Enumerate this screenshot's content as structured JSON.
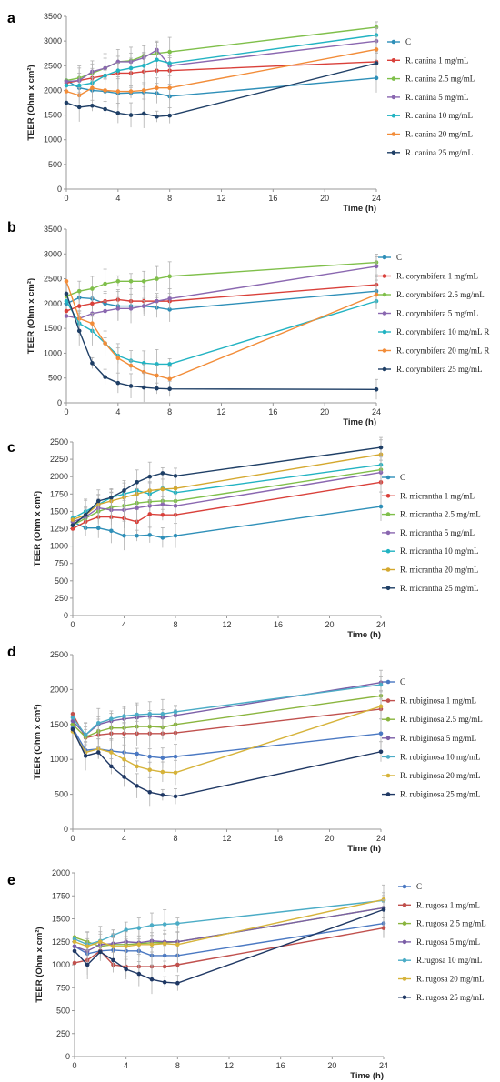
{
  "chart_data": [
    {
      "type": "line",
      "panel_label": "a",
      "xlabel": "Time (h)",
      "ylabel": "TEER (Ohm x cm²)",
      "xlim": [
        0,
        24
      ],
      "ylim": [
        0,
        3500
      ],
      "x_ticks": [
        0,
        4,
        8,
        12,
        16,
        20,
        24
      ],
      "y_ticks": [
        0,
        500,
        1000,
        1500,
        2000,
        2500,
        3000,
        3500
      ],
      "grid": false,
      "legend_position": "right",
      "x": [
        0,
        1,
        2,
        3,
        4,
        5,
        6,
        7,
        8,
        24
      ],
      "series": [
        {
          "name": "C",
          "color": "#2e8fb8",
          "values": [
            2200,
            2050,
            2000,
            1980,
            1940,
            1950,
            1960,
            1940,
            1880,
            2250
          ]
        },
        {
          "name": "R. canina 1 mg/mL",
          "color": "#d9403a",
          "values": [
            2150,
            2200,
            2250,
            2300,
            2350,
            2350,
            2380,
            2400,
            2400,
            2580
          ]
        },
        {
          "name": "R. canina 2.5 mg/mL",
          "color": "#7fbf4a",
          "values": [
            2200,
            2250,
            2350,
            2450,
            2580,
            2600,
            2700,
            2750,
            2780,
            3280
          ]
        },
        {
          "name": "R. canina 5 mg/mL",
          "color": "#8a67b0",
          "values": [
            2180,
            2200,
            2380,
            2450,
            2580,
            2580,
            2660,
            2820,
            2500,
            3000
          ]
        },
        {
          "name": "R. canina 10 mg/mL",
          "color": "#22b3c2",
          "values": [
            2100,
            2100,
            2150,
            2300,
            2400,
            2450,
            2500,
            2620,
            2550,
            3120
          ]
        },
        {
          "name": "R. canina 20 mg/mL",
          "color": "#f28c38",
          "values": [
            1980,
            1900,
            2050,
            2000,
            1980,
            1980,
            2000,
            2050,
            2050,
            2830
          ]
        },
        {
          "name": "R. canina 25 mg/mL",
          "color": "#1f3f66",
          "values": [
            1750,
            1660,
            1690,
            1620,
            1540,
            1500,
            1530,
            1470,
            1490,
            2550
          ]
        }
      ]
    },
    {
      "type": "line",
      "panel_label": "b",
      "xlabel": "Time (h)",
      "ylabel": "TEER (Ohm x cm²)",
      "xlim": [
        0,
        24
      ],
      "ylim": [
        0,
        3500
      ],
      "x_ticks": [
        0,
        4,
        8,
        12,
        16,
        20,
        24
      ],
      "y_ticks": [
        0,
        500,
        1000,
        1500,
        2000,
        2500,
        3000,
        3500
      ],
      "grid": false,
      "legend_position": "right",
      "x": [
        0,
        1,
        2,
        3,
        4,
        5,
        6,
        7,
        8,
        24
      ],
      "series": [
        {
          "name": "C",
          "color": "#2e8fb8",
          "values": [
            2000,
            2120,
            2100,
            2000,
            1950,
            1950,
            1950,
            1920,
            1880,
            2250
          ]
        },
        {
          "name": "R. corymbifera 1 mg/mL",
          "color": "#d9403a",
          "values": [
            1850,
            1950,
            2000,
            2050,
            2080,
            2050,
            2050,
            2050,
            2050,
            2380
          ]
        },
        {
          "name": "R. corymbifera 2.5 mg/mL",
          "color": "#7fbf4a",
          "values": [
            2150,
            2250,
            2300,
            2400,
            2450,
            2450,
            2450,
            2500,
            2550,
            2830
          ]
        },
        {
          "name": "R. corymbifera 5 mg/mL",
          "color": "#8a67b0",
          "values": [
            1750,
            1700,
            1800,
            1850,
            1900,
            1900,
            1950,
            2050,
            2100,
            2750
          ]
        },
        {
          "name": "R. corymbifera 10 mg/mL R",
          "color": "#22b3c2",
          "values": [
            2050,
            1600,
            1450,
            1200,
            950,
            850,
            800,
            780,
            780,
            2050
          ]
        },
        {
          "name": "R. corymbifera 20 mg/mL R",
          "color": "#f28c38",
          "values": [
            2450,
            1700,
            1600,
            1200,
            900,
            750,
            620,
            550,
            480,
            2180
          ]
        },
        {
          "name": "R. corymbifera 25 mg/mL",
          "color": "#1f3f66",
          "values": [
            2200,
            1450,
            800,
            520,
            400,
            340,
            310,
            290,
            280,
            270
          ]
        }
      ]
    },
    {
      "type": "line",
      "panel_label": "c",
      "xlabel": "Time (h)",
      "ylabel": "TEER (Ohm x cm²)",
      "xlim": [
        0,
        24
      ],
      "ylim": [
        0,
        2500
      ],
      "x_ticks": [
        0,
        4,
        8,
        12,
        16,
        20,
        24
      ],
      "y_ticks": [
        0,
        250,
        500,
        750,
        1000,
        1250,
        1500,
        1750,
        2000,
        2250,
        2500
      ],
      "grid": false,
      "legend_position": "right",
      "x": [
        0,
        1,
        2,
        3,
        4,
        5,
        6,
        7,
        8,
        24
      ],
      "series": [
        {
          "name": "C",
          "color": "#2e8fb8",
          "values": [
            1350,
            1260,
            1260,
            1220,
            1150,
            1150,
            1160,
            1120,
            1150,
            1570
          ]
        },
        {
          "name": "R. micrantha 1 mg/mL",
          "color": "#d9403a",
          "values": [
            1250,
            1350,
            1420,
            1420,
            1400,
            1350,
            1460,
            1450,
            1450,
            1920
          ]
        },
        {
          "name": "R. micrantha 2.5 mg/mL",
          "color": "#7fbf4a",
          "values": [
            1300,
            1400,
            1500,
            1560,
            1580,
            1620,
            1640,
            1650,
            1650,
            2100
          ]
        },
        {
          "name": "R. micrantha 5 mg/mL",
          "color": "#8a67b0",
          "values": [
            1350,
            1420,
            1550,
            1520,
            1520,
            1550,
            1580,
            1600,
            1580,
            2060
          ]
        },
        {
          "name": "R. micrantha 10 mg/mL",
          "color": "#22b3c2",
          "values": [
            1400,
            1500,
            1600,
            1700,
            1750,
            1800,
            1750,
            1830,
            1770,
            2170
          ]
        },
        {
          "name": "R. micrantha 20 mg/mL",
          "color": "#d4a82e",
          "values": [
            1380,
            1450,
            1600,
            1650,
            1700,
            1750,
            1800,
            1820,
            1830,
            2320
          ]
        },
        {
          "name": "R. micrantha 25 mg/mL",
          "color": "#1f3f66",
          "values": [
            1300,
            1450,
            1650,
            1700,
            1800,
            1920,
            2000,
            2050,
            2010,
            2420
          ]
        }
      ]
    },
    {
      "type": "line",
      "panel_label": "d",
      "xlabel": "Time (h)",
      "ylabel": "TEER (Ohm x cm²)",
      "xlim": [
        0,
        24
      ],
      "ylim": [
        0,
        2500
      ],
      "x_ticks": [
        0,
        4,
        8,
        12,
        16,
        20,
        24
      ],
      "y_ticks": [
        0,
        500,
        1000,
        1500,
        2000,
        2500
      ],
      "grid": false,
      "legend_position": "right",
      "x": [
        0,
        1,
        2,
        3,
        4,
        5,
        6,
        7,
        8,
        24
      ],
      "series": [
        {
          "name": "C",
          "color": "#4a78c2",
          "values": [
            1450,
            1130,
            1150,
            1120,
            1100,
            1080,
            1040,
            1020,
            1040,
            1370
          ]
        },
        {
          "name": "R. rubiginosa 1 mg/mL",
          "color": "#c0504d",
          "values": [
            1650,
            1310,
            1350,
            1370,
            1370,
            1370,
            1370,
            1370,
            1380,
            1720
          ]
        },
        {
          "name": "R. rubiginosa 2.5 mg/mL",
          "color": "#8ab53e",
          "values": [
            1500,
            1320,
            1400,
            1450,
            1450,
            1470,
            1470,
            1460,
            1500,
            1910
          ]
        },
        {
          "name": "R. rubiginosa 5 mg/mL",
          "color": "#7b5ea7",
          "values": [
            1550,
            1350,
            1500,
            1550,
            1580,
            1600,
            1620,
            1600,
            1630,
            2100
          ]
        },
        {
          "name": "R. rubiginosa 10 mg/mL",
          "color": "#4bacc6",
          "values": [
            1600,
            1350,
            1520,
            1580,
            1620,
            1640,
            1650,
            1650,
            1680,
            2070
          ]
        },
        {
          "name": "R. rubiginosa 20 mg/mL",
          "color": "#d6b33a",
          "values": [
            1400,
            1100,
            1150,
            1100,
            1000,
            900,
            850,
            820,
            810,
            1760
          ]
        },
        {
          "name": "R. rubiginosa 25 mg/mL",
          "color": "#1f3864",
          "values": [
            1430,
            1050,
            1100,
            900,
            750,
            620,
            530,
            490,
            470,
            1110
          ]
        }
      ]
    },
    {
      "type": "line",
      "panel_label": "e",
      "xlabel": "Time (h)",
      "ylabel": "TEER (Ohm x cm²)",
      "xlim": [
        0,
        24
      ],
      "ylim": [
        0,
        2000
      ],
      "x_ticks": [
        0,
        4,
        8,
        12,
        16,
        20,
        24
      ],
      "y_ticks": [
        0,
        250,
        500,
        750,
        1000,
        1250,
        1500,
        1750,
        2000
      ],
      "grid": false,
      "legend_position": "right",
      "x": [
        0,
        1,
        2,
        3,
        4,
        5,
        6,
        7,
        8,
        24
      ],
      "series": [
        {
          "name": "C",
          "color": "#4a78c2",
          "values": [
            1200,
            1120,
            1150,
            1160,
            1150,
            1150,
            1100,
            1100,
            1100,
            1450
          ]
        },
        {
          "name": "R. rugosa 1 mg/mL",
          "color": "#c0504d",
          "values": [
            1020,
            1050,
            1150,
            1000,
            980,
            980,
            980,
            980,
            1000,
            1400
          ]
        },
        {
          "name": "R. rugosa 2.5 mg/mL",
          "color": "#8ab53e",
          "values": [
            1300,
            1250,
            1200,
            1220,
            1220,
            1230,
            1240,
            1240,
            1250,
            1620
          ]
        },
        {
          "name": "R. rugosa 5 mg/mL",
          "color": "#7b5ea7",
          "values": [
            1200,
            1150,
            1220,
            1230,
            1250,
            1240,
            1260,
            1250,
            1250,
            1620
          ]
        },
        {
          "name": "R.rugosa 10 mg/mL",
          "color": "#4bacc6",
          "values": [
            1280,
            1220,
            1260,
            1320,
            1380,
            1400,
            1430,
            1440,
            1450,
            1700
          ]
        },
        {
          "name": "R. rugosa 20 mg/mL",
          "color": "#d6b33a",
          "values": [
            1250,
            1200,
            1250,
            1200,
            1200,
            1220,
            1220,
            1230,
            1220,
            1710
          ]
        },
        {
          "name": "R. rugosa 25 mg/mL",
          "color": "#1f3864",
          "values": [
            1150,
            1000,
            1140,
            1050,
            950,
            900,
            840,
            810,
            800,
            1600
          ]
        }
      ]
    }
  ]
}
